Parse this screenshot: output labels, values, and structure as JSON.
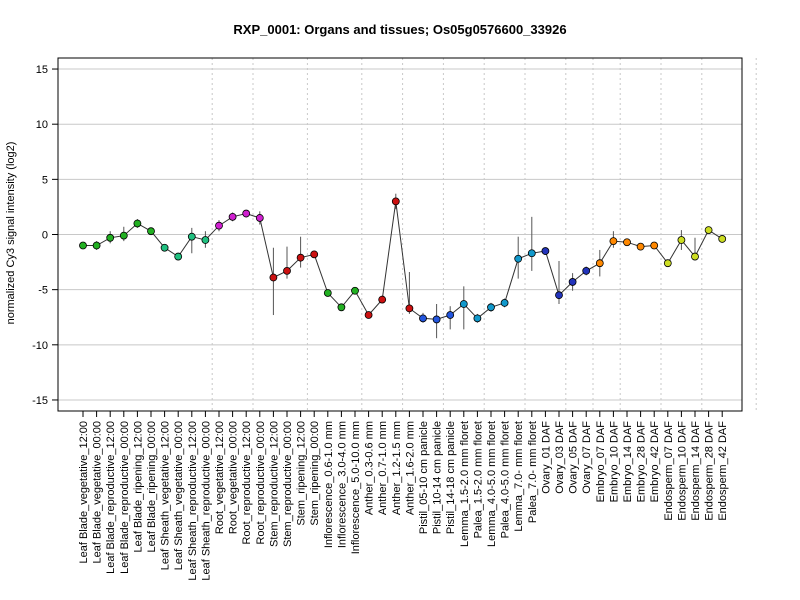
{
  "chart_data": {
    "type": "line",
    "title": "RXP_0001: Organs and tissues; Os05g0576600_33926",
    "xlabel": "",
    "ylabel": "normalized Cy3 signal intensity (log2)",
    "ylim": [
      -16,
      16
    ],
    "yticks": [
      -15,
      -10,
      -5,
      0,
      5,
      10,
      15
    ],
    "grid": "horizontal at y ticks; dotted vertical separators between sample groups",
    "group_separators_after_index": [
      9,
      12,
      16,
      20,
      23,
      26,
      29,
      32,
      35,
      37,
      39,
      42,
      45,
      49,
      53
    ],
    "categories": [
      "Leaf Blade_vegetative_12:00",
      "Leaf Blade_vegetative_00:00",
      "Leaf Blade_reproductive_12:00",
      "Leaf Blade_reproductive_00:00",
      "Leaf Blade_ripening_12:00",
      "Leaf Blade_ripening_00:00",
      "Leaf Sheath_vegetative_12:00",
      "Leaf Sheath_vegetative_00:00",
      "Leaf Sheath_reproductive_12:00",
      "Leaf Sheath_reproductive_00:00",
      "Root_vegetative_12:00",
      "Root_vegetative_00:00",
      "Root_reproductive_12:00",
      "Root_reproductive_00:00",
      "Stem_reproductive_12:00",
      "Stem_reproductive_00:00",
      "Stem_ripening_12:00",
      "Stem_ripening_00:00",
      "Inflorescence_0.6-1.0 mm",
      "Inflorescence_3.0-4.0 mm",
      "Inflorescence_5.0-10.0 mm",
      "Anther_0.3-0.6 mm",
      "Anther_0.7-1.0 mm",
      "Anther_1.2-1.5 mm",
      "Anther_1.6-2.0 mm",
      "Pistil_05-10 cm panicle",
      "Pistil_10-14 cm panicle",
      "Pistil_14-18 cm panicle",
      "Lemma_1.5-2.0 mm floret",
      "Palea_1.5-2.0 mm floret",
      "Lemma_4.0-5.0 mm floret",
      "Palea_4.0-5.0 mm floret",
      "Lemma_7.0- mm floret",
      "Palea_7.0- mm floret",
      "Ovary_01 DAF",
      "Ovary_03 DAF",
      "Ovary_05 DAF",
      "Ovary_07 DAF",
      "Embryo_07 DAF",
      "Embryo_10 DAF",
      "Embryo_14 DAF",
      "Embryo_28 DAF",
      "Embryo_42 DAF",
      "Endosperm_07 DAF",
      "Endosperm_10 DAF",
      "Endosperm_14 DAF",
      "Endosperm_28 DAF",
      "Endosperm_42 DAF"
    ],
    "series": [
      {
        "values": [
          -1.0,
          -1.0,
          -0.3,
          -0.1,
          1.0,
          0.3,
          -1.2,
          -2.0,
          -0.2,
          -0.5,
          0.8,
          1.6,
          1.9,
          1.5,
          -3.9,
          -3.3,
          -2.1,
          -1.8,
          -5.3,
          -6.6,
          -5.1,
          -7.3,
          -5.9,
          3.0,
          -6.7,
          -7.6,
          -7.7,
          -7.3,
          -6.3,
          -7.6,
          -6.6,
          -6.2,
          -2.2,
          -1.7,
          -1.5,
          -5.5,
          -4.3,
          -3.3,
          -2.6,
          -0.6,
          -0.7,
          -1.1,
          -1.0,
          -2.6,
          -0.5,
          -2.0,
          0.4,
          -0.4
        ],
        "error_low": [
          -1.3,
          -1.4,
          -0.8,
          -0.6,
          0.6,
          0.0,
          -1.5,
          -2.3,
          -1.7,
          -1.2,
          0.3,
          1.2,
          1.6,
          0.9,
          -7.3,
          -4.0,
          -3.0,
          -2.0,
          -5.6,
          -6.9,
          -5.4,
          -7.6,
          -6.2,
          2.3,
          -7.2,
          -8.0,
          -9.4,
          -8.6,
          -8.6,
          -8.0,
          -7.0,
          -6.6,
          -4.0,
          -3.3,
          -1.8,
          -6.3,
          -5.1,
          -3.7,
          -3.8,
          -1.2,
          -1.0,
          -1.4,
          -1.2,
          -2.9,
          -1.4,
          -2.3,
          0.2,
          -0.7
        ],
        "error_high": [
          -0.7,
          -0.6,
          0.3,
          0.7,
          1.4,
          0.6,
          -0.9,
          -1.7,
          0.6,
          0.3,
          1.3,
          2.0,
          2.2,
          2.1,
          -1.2,
          -1.1,
          -0.2,
          -1.6,
          -5.0,
          -6.3,
          -4.8,
          -7.0,
          -5.6,
          3.7,
          -3.4,
          -7.1,
          -6.3,
          -6.5,
          -4.7,
          -7.2,
          -6.2,
          -5.8,
          -0.2,
          1.6,
          -1.2,
          -2.4,
          -3.5,
          -2.9,
          -1.4,
          0.3,
          -0.4,
          -0.8,
          -0.8,
          -2.3,
          0.4,
          -0.3,
          0.6,
          -0.1
        ]
      }
    ],
    "point_colors": [
      "#22b022",
      "#22b022",
      "#22b022",
      "#22b022",
      "#22b022",
      "#22b022",
      "#20c080",
      "#20c080",
      "#20c080",
      "#20c080",
      "#d020d0",
      "#d020d0",
      "#d020d0",
      "#d020d0",
      "#cc1111",
      "#cc1111",
      "#cc1111",
      "#cc1111",
      "#22b022",
      "#22b022",
      "#22b022",
      "#cc1111",
      "#cc1111",
      "#cc1111",
      "#cc1111",
      "#2255dd",
      "#2255dd",
      "#2255dd",
      "#1199cc",
      "#1199cc",
      "#1199cc",
      "#1199cc",
      "#1199cc",
      "#1199cc",
      "#2233bb",
      "#2233bb",
      "#2233bb",
      "#2233bb",
      "#ff8800",
      "#ff8800",
      "#ff8800",
      "#ff8800",
      "#ff8800",
      "#ccdd22",
      "#ccdd22",
      "#ccdd22",
      "#ccdd22",
      "#ccdd22"
    ]
  }
}
